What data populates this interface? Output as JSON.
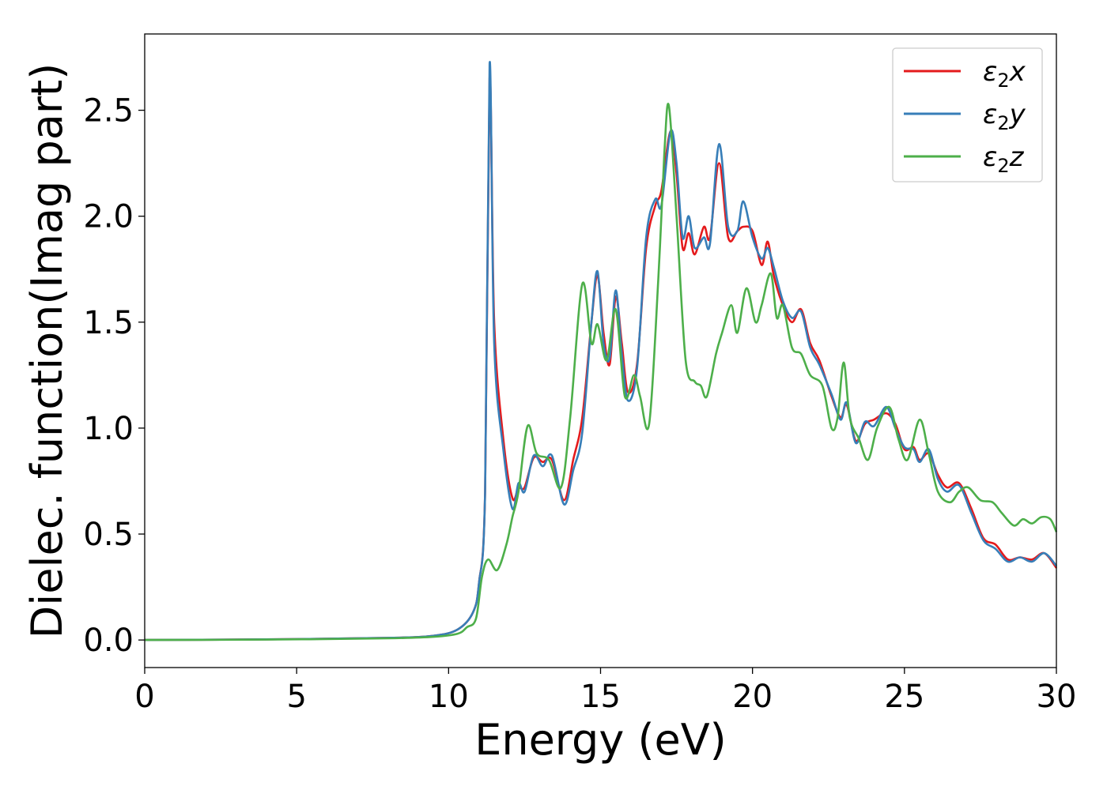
{
  "chart_data": {
    "type": "line",
    "xlabel": "Energy (eV)",
    "ylabel": "Dielec. function(Imag part)",
    "xlim": [
      0,
      30
    ],
    "ylim": [
      -0.13,
      2.86
    ],
    "xticks": [
      0,
      5,
      10,
      15,
      20,
      25,
      30
    ],
    "yticks": [
      0.0,
      0.5,
      1.0,
      1.5,
      2.0,
      2.5
    ],
    "xtick_labels": [
      "0",
      "5",
      "10",
      "15",
      "20",
      "25",
      "30"
    ],
    "ytick_labels": [
      "0.0",
      "0.5",
      "1.0",
      "1.5",
      "2.0",
      "2.5"
    ],
    "grid": false,
    "legend_position": "top-right",
    "series": [
      {
        "name": "ε₂x",
        "legend": {
          "base": "ε",
          "sub": "2",
          "tail": "x"
        },
        "color": "#e41a1c",
        "x": [
          0,
          4,
          8,
          9.5,
          10.3,
          10.8,
          11.0,
          11.2,
          11.35,
          11.5,
          11.8,
          12.1,
          12.3,
          12.5,
          12.8,
          13.1,
          13.4,
          13.8,
          14.1,
          14.4,
          14.7,
          14.9,
          15.1,
          15.3,
          15.5,
          15.7,
          15.9,
          16.2,
          16.5,
          16.8,
          17.0,
          17.3,
          17.5,
          17.7,
          17.9,
          18.1,
          18.4,
          18.6,
          18.9,
          19.2,
          19.5,
          19.7,
          20.0,
          20.3,
          20.5,
          20.7,
          21.0,
          21.3,
          21.6,
          21.9,
          22.2,
          22.6,
          22.9,
          23.1,
          23.4,
          23.7,
          24.0,
          24.4,
          24.7,
          25.0,
          25.3,
          25.5,
          25.8,
          26.1,
          26.4,
          26.8,
          27.2,
          27.6,
          28.0,
          28.4,
          28.8,
          29.2,
          29.6,
          30.0
        ],
        "y": [
          0.0,
          0.003,
          0.01,
          0.02,
          0.05,
          0.13,
          0.27,
          0.7,
          2.65,
          1.5,
          0.95,
          0.67,
          0.72,
          0.72,
          0.86,
          0.84,
          0.85,
          0.66,
          0.85,
          1.05,
          1.5,
          1.72,
          1.45,
          1.3,
          1.62,
          1.4,
          1.17,
          1.3,
          1.85,
          2.05,
          2.12,
          2.4,
          2.2,
          1.85,
          1.92,
          1.82,
          1.95,
          1.9,
          2.25,
          1.9,
          1.93,
          1.95,
          1.93,
          1.77,
          1.88,
          1.72,
          1.58,
          1.5,
          1.56,
          1.4,
          1.32,
          1.15,
          1.05,
          1.11,
          0.94,
          1.02,
          1.04,
          1.07,
          1.02,
          0.9,
          0.91,
          0.85,
          0.88,
          0.78,
          0.72,
          0.74,
          0.62,
          0.48,
          0.45,
          0.38,
          0.39,
          0.38,
          0.41,
          0.34
        ]
      },
      {
        "name": "ε₂y",
        "legend": {
          "base": "ε",
          "sub": "2",
          "tail": "y"
        },
        "color": "#377eb8",
        "x": [
          0,
          4,
          8,
          9.5,
          10.3,
          10.8,
          11.0,
          11.2,
          11.35,
          11.5,
          11.8,
          12.1,
          12.3,
          12.5,
          12.8,
          13.1,
          13.4,
          13.8,
          14.1,
          14.4,
          14.7,
          14.9,
          15.1,
          15.3,
          15.5,
          15.7,
          15.9,
          16.2,
          16.5,
          16.8,
          17.0,
          17.3,
          17.5,
          17.7,
          17.9,
          18.1,
          18.4,
          18.6,
          18.9,
          19.2,
          19.5,
          19.7,
          20.0,
          20.3,
          20.5,
          20.7,
          21.0,
          21.3,
          21.6,
          21.9,
          22.2,
          22.6,
          22.9,
          23.1,
          23.4,
          23.7,
          24.0,
          24.4,
          24.7,
          25.0,
          25.3,
          25.5,
          25.8,
          26.1,
          26.4,
          26.8,
          27.2,
          27.6,
          28.0,
          28.4,
          28.8,
          29.2,
          29.6,
          30.0
        ],
        "y": [
          0.0,
          0.003,
          0.01,
          0.02,
          0.05,
          0.13,
          0.27,
          0.7,
          2.72,
          1.4,
          0.9,
          0.62,
          0.74,
          0.7,
          0.87,
          0.82,
          0.87,
          0.64,
          0.8,
          0.98,
          1.5,
          1.74,
          1.4,
          1.33,
          1.65,
          1.35,
          1.13,
          1.28,
          1.9,
          2.08,
          2.05,
          2.4,
          2.25,
          1.9,
          2.0,
          1.85,
          1.9,
          1.87,
          2.34,
          1.95,
          1.93,
          2.07,
          1.9,
          1.8,
          1.85,
          1.76,
          1.6,
          1.52,
          1.55,
          1.38,
          1.3,
          1.16,
          1.04,
          1.12,
          0.93,
          1.03,
          1.01,
          1.1,
          1.0,
          0.91,
          0.9,
          0.84,
          0.9,
          0.76,
          0.7,
          0.73,
          0.6,
          0.47,
          0.43,
          0.37,
          0.39,
          0.37,
          0.41,
          0.35
        ]
      },
      {
        "name": "ε₂z",
        "legend": {
          "base": "ε",
          "sub": "2",
          "tail": "z"
        },
        "color": "#4daf4a",
        "x": [
          0,
          4,
          8,
          9.5,
          10.3,
          10.6,
          10.9,
          11.1,
          11.3,
          11.6,
          11.9,
          12.1,
          12.3,
          12.6,
          12.9,
          13.3,
          13.7,
          14.0,
          14.4,
          14.7,
          14.9,
          15.2,
          15.5,
          15.8,
          16.1,
          16.3,
          16.6,
          16.9,
          17.1,
          17.25,
          17.5,
          17.8,
          18.1,
          18.3,
          18.5,
          18.8,
          19.0,
          19.3,
          19.5,
          19.8,
          20.1,
          20.3,
          20.6,
          20.8,
          21.0,
          21.3,
          21.6,
          21.9,
          22.3,
          22.6,
          22.8,
          23.0,
          23.2,
          23.5,
          23.8,
          24.1,
          24.5,
          24.8,
          25.1,
          25.5,
          25.8,
          26.1,
          26.5,
          26.8,
          27.1,
          27.5,
          27.9,
          28.2,
          28.6,
          28.9,
          29.2,
          29.5,
          29.8,
          30.0
        ],
        "y": [
          0.0,
          0.002,
          0.008,
          0.015,
          0.03,
          0.06,
          0.1,
          0.3,
          0.38,
          0.33,
          0.45,
          0.58,
          0.7,
          1.01,
          0.88,
          0.85,
          0.72,
          1.05,
          1.68,
          1.4,
          1.49,
          1.32,
          1.56,
          1.15,
          1.25,
          1.15,
          1.02,
          1.7,
          2.3,
          2.52,
          2.0,
          1.32,
          1.22,
          1.2,
          1.15,
          1.35,
          1.45,
          1.58,
          1.45,
          1.66,
          1.5,
          1.58,
          1.73,
          1.52,
          1.58,
          1.38,
          1.35,
          1.25,
          1.2,
          1.0,
          1.05,
          1.31,
          1.05,
          0.95,
          0.85,
          1.0,
          1.1,
          0.95,
          0.85,
          1.04,
          0.88,
          0.7,
          0.65,
          0.7,
          0.72,
          0.66,
          0.65,
          0.6,
          0.54,
          0.57,
          0.55,
          0.58,
          0.57,
          0.51
        ]
      }
    ]
  }
}
